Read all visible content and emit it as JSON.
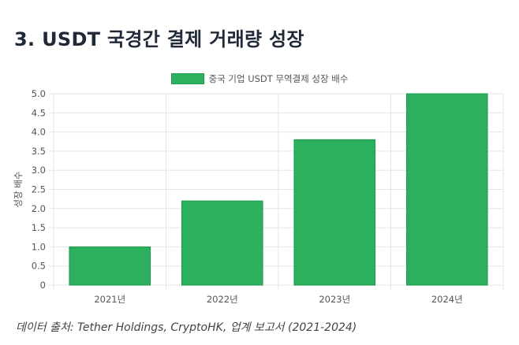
{
  "page": {
    "title": "3. USDT 국경간 결제 거래량 성장",
    "source": "데이터 출처: Tether Holdings, CryptoHK, 업계 보고서 (2021-2024)"
  },
  "colors": {
    "bar": "#2cb05e",
    "bar_border": "#1e9a4c",
    "grid": "#e5e5e5",
    "axis_text": "#555555"
  },
  "chart_data": {
    "type": "bar",
    "categories": [
      "2021년",
      "2022년",
      "2023년",
      "2024년"
    ],
    "series": [
      {
        "name": "중국 기업 USDT 무역결제 성장 배수",
        "values": [
          1.0,
          2.2,
          3.8,
          5.0
        ]
      }
    ],
    "ylabel": "성장 배수",
    "xlabel": "",
    "ylim": [
      0,
      5.0
    ],
    "yticks": [
      "0",
      "0.5",
      "1.0",
      "1.5",
      "2.0",
      "2.5",
      "3.0",
      "3.5",
      "4.0",
      "4.5",
      "5.0"
    ],
    "grid": true,
    "legend_position": "top-center"
  }
}
